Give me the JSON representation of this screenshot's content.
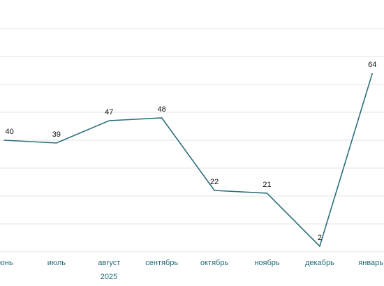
{
  "chart_data": {
    "type": "line",
    "categories": [
      "июнь",
      "июль",
      "август",
      "сентябрь",
      "октябрь",
      "ноябрь",
      "декабрь",
      "январь"
    ],
    "values": [
      40,
      39,
      47,
      48,
      22,
      21,
      2,
      64
    ],
    "color": "#2b6f78",
    "year_label": "2025",
    "ylim": [
      0,
      80
    ],
    "yticks": [
      0,
      10,
      20,
      30,
      40,
      50,
      60,
      70,
      80
    ],
    "grid": true
  }
}
